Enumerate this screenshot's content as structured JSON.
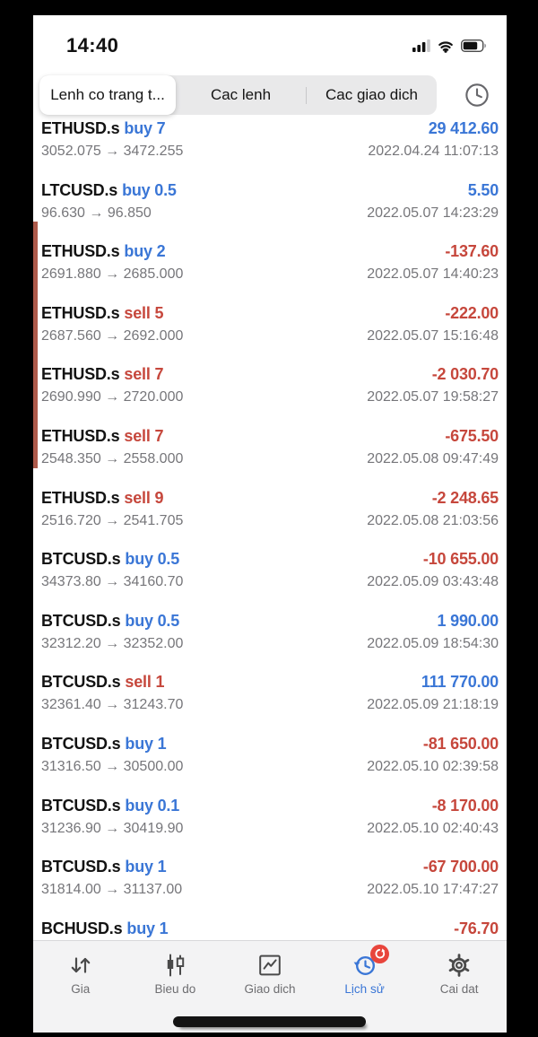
{
  "ui": {
    "price_arrow": "→"
  },
  "colors": {
    "buy": "#3a76d6",
    "sell": "#c6473c",
    "profit_positive": "#3a76d6",
    "profit_negative": "#c6473c",
    "flag_accent": "#ad5a4b",
    "active_tab": "#3a76d6",
    "badge": "#e8453c"
  },
  "status_bar": {
    "time": "14:40",
    "icons": [
      "cellular-signal-icon",
      "wifi-icon",
      "battery-icon"
    ]
  },
  "filter_tabs": {
    "tabs": [
      {
        "label": "Lenh co trang t...",
        "selected": true
      },
      {
        "label": "Cac lenh",
        "selected": false
      },
      {
        "label": "Cac giao dich",
        "selected": false
      }
    ],
    "history_filter_icon": "clock-icon"
  },
  "trades": [
    {
      "symbol": "ETHUSD.s",
      "side": "buy",
      "volume": "7",
      "open": "3052.075",
      "close": "3472.255",
      "profit": "29 412.60",
      "time": "2022.04.24 11:07:13",
      "flagged": false
    },
    {
      "symbol": "LTCUSD.s",
      "side": "buy",
      "volume": "0.5",
      "open": "96.630",
      "close": "96.850",
      "profit": "5.50",
      "time": "2022.05.07 14:23:29",
      "flagged": false
    },
    {
      "symbol": "ETHUSD.s",
      "side": "buy",
      "volume": "2",
      "open": "2691.880",
      "close": "2685.000",
      "profit": "-137.60",
      "time": "2022.05.07 14:40:23",
      "flagged": true
    },
    {
      "symbol": "ETHUSD.s",
      "side": "sell",
      "volume": "5",
      "open": "2687.560",
      "close": "2692.000",
      "profit": "-222.00",
      "time": "2022.05.07 15:16:48",
      "flagged": true
    },
    {
      "symbol": "ETHUSD.s",
      "side": "sell",
      "volume": "7",
      "open": "2690.990",
      "close": "2720.000",
      "profit": "-2 030.70",
      "time": "2022.05.07 19:58:27",
      "flagged": true
    },
    {
      "symbol": "ETHUSD.s",
      "side": "sell",
      "volume": "7",
      "open": "2548.350",
      "close": "2558.000",
      "profit": "-675.50",
      "time": "2022.05.08 09:47:49",
      "flagged": true
    },
    {
      "symbol": "ETHUSD.s",
      "side": "sell",
      "volume": "9",
      "open": "2516.720",
      "close": "2541.705",
      "profit": "-2 248.65",
      "time": "2022.05.08 21:03:56",
      "flagged": false
    },
    {
      "symbol": "BTCUSD.s",
      "side": "buy",
      "volume": "0.5",
      "open": "34373.80",
      "close": "34160.70",
      "profit": "-10 655.00",
      "time": "2022.05.09 03:43:48",
      "flagged": false
    },
    {
      "symbol": "BTCUSD.s",
      "side": "buy",
      "volume": "0.5",
      "open": "32312.20",
      "close": "32352.00",
      "profit": "1 990.00",
      "time": "2022.05.09 18:54:30",
      "flagged": false
    },
    {
      "symbol": "BTCUSD.s",
      "side": "sell",
      "volume": "1",
      "open": "32361.40",
      "close": "31243.70",
      "profit": "111 770.00",
      "time": "2022.05.09 21:18:19",
      "flagged": false
    },
    {
      "symbol": "BTCUSD.s",
      "side": "buy",
      "volume": "1",
      "open": "31316.50",
      "close": "30500.00",
      "profit": "-81 650.00",
      "time": "2022.05.10 02:39:58",
      "flagged": false
    },
    {
      "symbol": "BTCUSD.s",
      "side": "buy",
      "volume": "0.1",
      "open": "31236.90",
      "close": "30419.90",
      "profit": "-8 170.00",
      "time": "2022.05.10 02:40:43",
      "flagged": false
    },
    {
      "symbol": "BTCUSD.s",
      "side": "buy",
      "volume": "1",
      "open": "31814.00",
      "close": "31137.00",
      "profit": "-67 700.00",
      "time": "2022.05.10 17:47:27",
      "flagged": false
    },
    {
      "symbol": "BCHUSD.s",
      "side": "buy",
      "volume": "1",
      "open": "",
      "close": "",
      "profit": "-76.70",
      "time": "",
      "flagged": false
    }
  ],
  "tab_bar": {
    "items": [
      {
        "label": "Gia",
        "icon": "price-arrows-icon",
        "active": false
      },
      {
        "label": "Bieu do",
        "icon": "candlestick-chart-icon",
        "active": false
      },
      {
        "label": "Giao dich",
        "icon": "trade-chart-icon",
        "active": false
      },
      {
        "label": "Lịch sử",
        "icon": "history-clock-icon",
        "active": true,
        "badge": "refresh-badge"
      },
      {
        "label": "Cai dat",
        "icon": "settings-gear-icon",
        "active": false
      }
    ]
  }
}
